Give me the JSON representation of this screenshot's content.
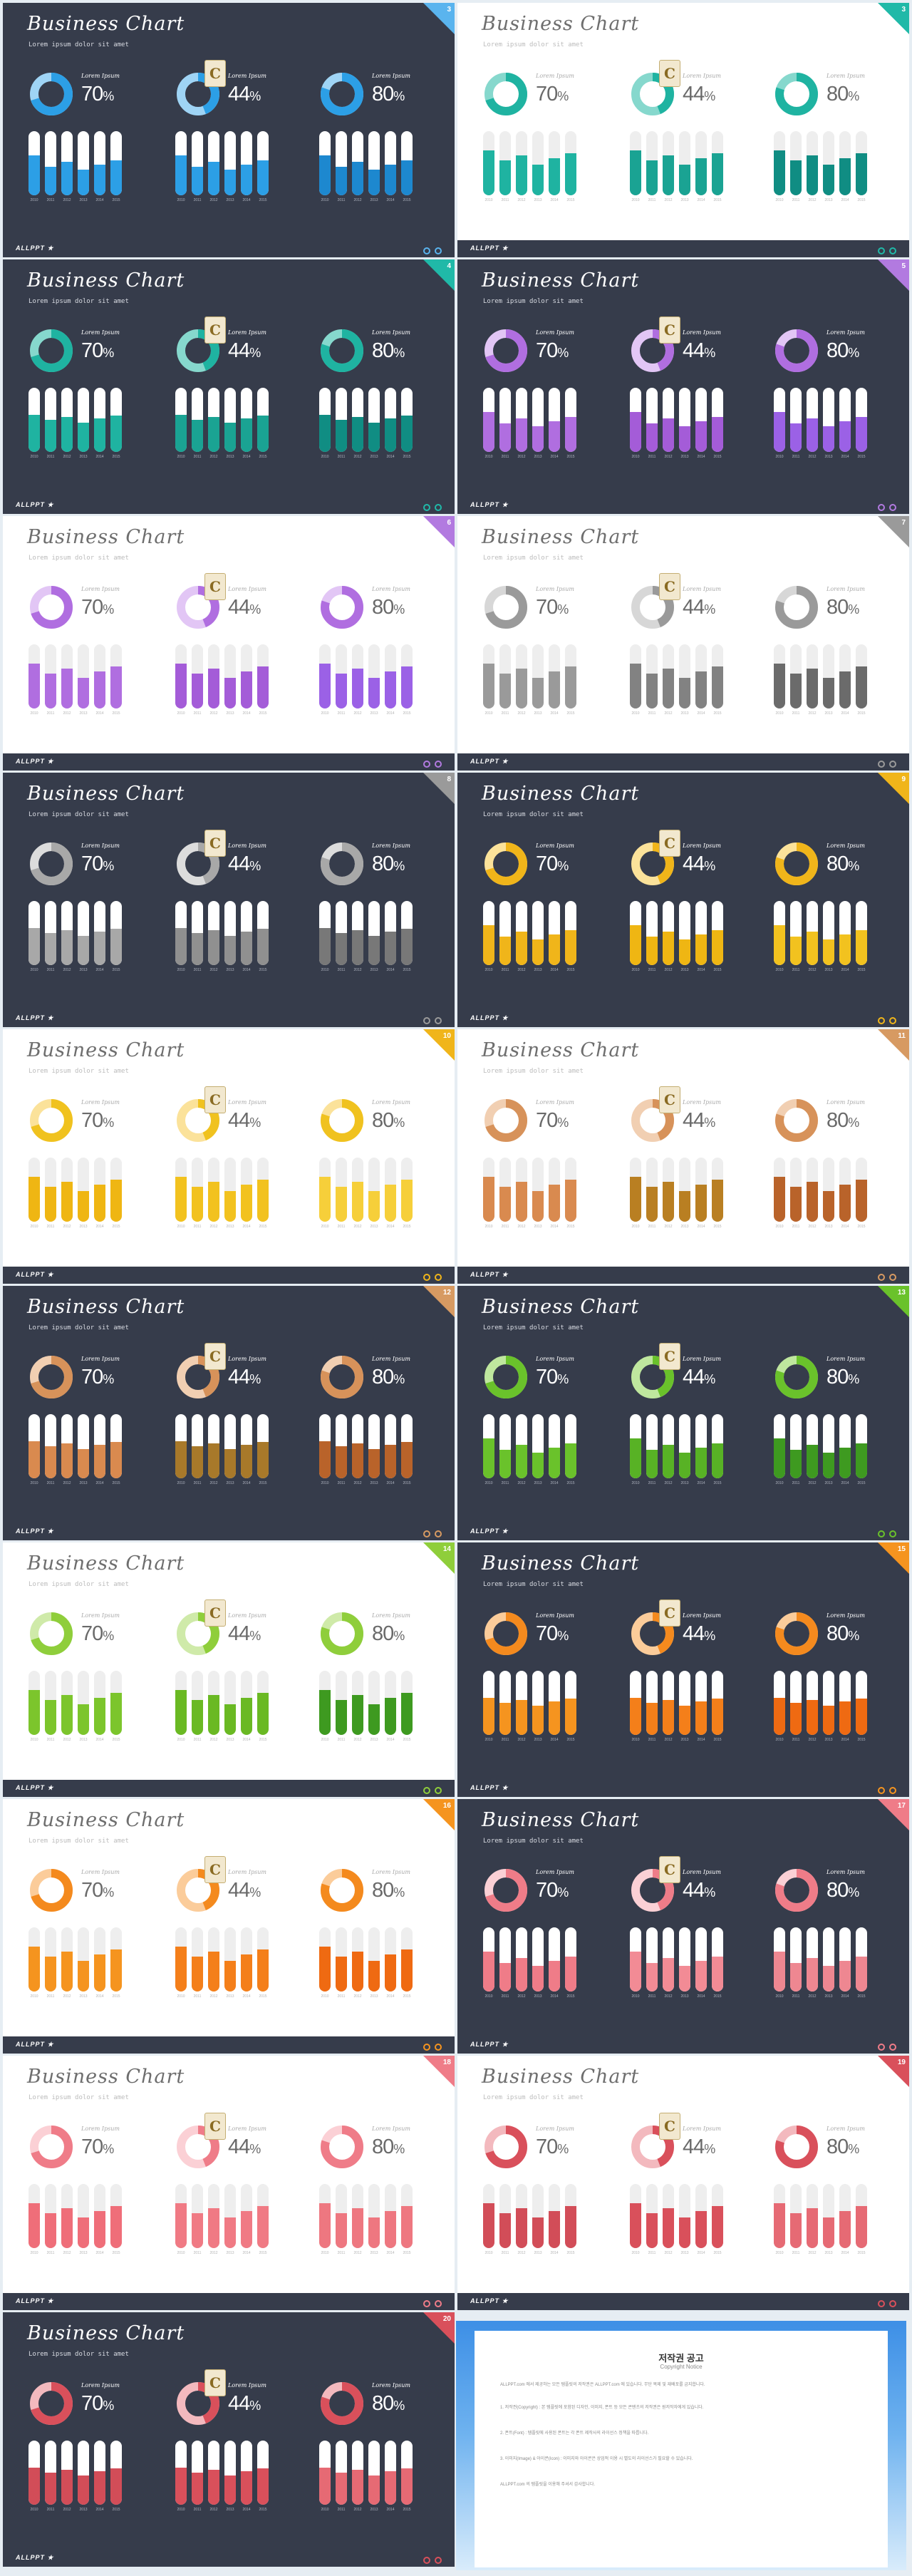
{
  "common": {
    "title": "Business Chart",
    "subtitle": "Lorem ipsum dolor sit amet",
    "panel_label": "Lorem Ipsum",
    "percents": [
      "70",
      "44",
      "80"
    ],
    "percent_symbol": "%",
    "years": [
      "2010",
      "2011",
      "2012",
      "2013",
      "2014",
      "2015"
    ],
    "brand": "ALLPPT ★",
    "watermark_glyph": "C"
  },
  "slides": [
    {
      "number": "3",
      "theme": "dark",
      "accent": "#5ab4ee",
      "donut": [
        "#2c9fe6",
        "#9fd4f5"
      ],
      "bar_palette": [
        "#2c9fe6",
        "#2c9fe6",
        "#1d88cf"
      ],
      "track": "#ffffff",
      "values": [
        0.62,
        0.45,
        0.52,
        0.4,
        0.48,
        0.55,
        0.62,
        0.45,
        0.52,
        0.4,
        0.48,
        0.55,
        0.62,
        0.45,
        0.52,
        0.4,
        0.48,
        0.55
      ]
    },
    {
      "number": "3",
      "theme": "light",
      "accent": "#20b9a8",
      "donut": [
        "#1fb3a1",
        "#86d8cd"
      ],
      "bar_palette": [
        "#1fb3a1",
        "#1aa393",
        "#108d83"
      ],
      "track": "#eeeeee",
      "values": [
        0.7,
        0.55,
        0.62,
        0.48,
        0.58,
        0.66,
        0.7,
        0.55,
        0.62,
        0.48,
        0.58,
        0.66,
        0.7,
        0.55,
        0.62,
        0.48,
        0.58,
        0.66
      ]
    },
    {
      "number": "4",
      "theme": "dark",
      "accent": "#20b9a8",
      "donut": [
        "#1fb3a1",
        "#86d8cd"
      ],
      "bar_palette": [
        "#1fb3a1",
        "#1aa393",
        "#108d83"
      ],
      "track": "#ffffff",
      "values": [
        0.58,
        0.5,
        0.55,
        0.46,
        0.52,
        0.57,
        0.58,
        0.5,
        0.55,
        0.46,
        0.52,
        0.57,
        0.58,
        0.5,
        0.55,
        0.46,
        0.52,
        0.57
      ]
    },
    {
      "number": "5",
      "theme": "dark",
      "accent": "#b27ae0",
      "donut": [
        "#b06ee0",
        "#e2c6f5"
      ],
      "bar_palette": [
        "#b06ee0",
        "#a45cd8",
        "#9b61e6"
      ],
      "track": "#ffffff",
      "values": [
        0.62,
        0.45,
        0.52,
        0.4,
        0.48,
        0.55,
        0.62,
        0.45,
        0.52,
        0.4,
        0.48,
        0.55,
        0.62,
        0.45,
        0.52,
        0.4,
        0.48,
        0.55
      ]
    },
    {
      "number": "6",
      "theme": "light",
      "accent": "#b27ae0",
      "donut": [
        "#b06ee0",
        "#e2c6f5"
      ],
      "bar_palette": [
        "#b06ee0",
        "#a45cd8",
        "#9b61e6"
      ],
      "track": "#eeeeee",
      "values": [
        0.7,
        0.55,
        0.62,
        0.48,
        0.58,
        0.66,
        0.7,
        0.55,
        0.62,
        0.48,
        0.58,
        0.66,
        0.7,
        0.55,
        0.62,
        0.48,
        0.58,
        0.66
      ]
    },
    {
      "number": "7",
      "theme": "light",
      "accent": "#9a9a9a",
      "donut": [
        "#9a9a9a",
        "#d7d7d7"
      ],
      "bar_palette": [
        "#9a9a9a",
        "#828282",
        "#6b6b6b"
      ],
      "track": "#eeeeee",
      "values": [
        0.7,
        0.55,
        0.62,
        0.48,
        0.58,
        0.66,
        0.7,
        0.55,
        0.62,
        0.48,
        0.58,
        0.66,
        0.7,
        0.55,
        0.62,
        0.48,
        0.58,
        0.66
      ]
    },
    {
      "number": "8",
      "theme": "dark",
      "accent": "#9a9a9a",
      "donut": [
        "#a8a8a8",
        "#dcdcdc"
      ],
      "bar_palette": [
        "#a8a8a8",
        "#909090",
        "#787878"
      ],
      "track": "#ffffff",
      "values": [
        0.58,
        0.5,
        0.55,
        0.46,
        0.52,
        0.57,
        0.58,
        0.5,
        0.55,
        0.46,
        0.52,
        0.57,
        0.58,
        0.5,
        0.55,
        0.46,
        0.52,
        0.57
      ]
    },
    {
      "number": "9",
      "theme": "dark",
      "accent": "#f0b51a",
      "donut": [
        "#f0b51a",
        "#fbe29a"
      ],
      "bar_palette": [
        "#f0b51a",
        "#efb613",
        "#f2c21f"
      ],
      "track": "#ffffff",
      "values": [
        0.62,
        0.45,
        0.52,
        0.4,
        0.48,
        0.55,
        0.62,
        0.45,
        0.52,
        0.4,
        0.48,
        0.55,
        0.62,
        0.45,
        0.52,
        0.4,
        0.48,
        0.55
      ]
    },
    {
      "number": "10",
      "theme": "light",
      "accent": "#f0b51a",
      "donut": [
        "#f0c21f",
        "#fbe29a"
      ],
      "bar_palette": [
        "#efb613",
        "#f2c21f",
        "#f6cf3a"
      ],
      "track": "#eeeeee",
      "values": [
        0.7,
        0.55,
        0.62,
        0.48,
        0.58,
        0.66,
        0.7,
        0.55,
        0.62,
        0.48,
        0.58,
        0.66,
        0.7,
        0.55,
        0.62,
        0.48,
        0.58,
        0.66
      ]
    },
    {
      "number": "11",
      "theme": "light",
      "accent": "#d79a62",
      "donut": [
        "#d7925a",
        "#f1cfb2"
      ],
      "bar_palette": [
        "#d98a4f",
        "#b97f22",
        "#b9632a"
      ],
      "track": "#eeeeee",
      "values": [
        0.7,
        0.55,
        0.62,
        0.48,
        0.58,
        0.66,
        0.7,
        0.55,
        0.62,
        0.48,
        0.58,
        0.66,
        0.7,
        0.55,
        0.62,
        0.48,
        0.58,
        0.66
      ]
    },
    {
      "number": "12",
      "theme": "dark",
      "accent": "#d79a62",
      "donut": [
        "#d7925a",
        "#f1cfb2"
      ],
      "bar_palette": [
        "#d98a4f",
        "#a8792a",
        "#b9632a"
      ],
      "track": "#ffffff",
      "values": [
        0.58,
        0.5,
        0.55,
        0.46,
        0.52,
        0.57,
        0.58,
        0.5,
        0.55,
        0.46,
        0.52,
        0.57,
        0.58,
        0.5,
        0.55,
        0.46,
        0.52,
        0.57
      ]
    },
    {
      "number": "13",
      "theme": "dark",
      "accent": "#6ac22b",
      "donut": [
        "#6ac22b",
        "#bfe79e"
      ],
      "bar_palette": [
        "#6ac22b",
        "#58b225",
        "#3e9a20"
      ],
      "track": "#ffffff",
      "values": [
        0.62,
        0.45,
        0.52,
        0.4,
        0.48,
        0.55,
        0.62,
        0.45,
        0.52,
        0.4,
        0.48,
        0.55,
        0.62,
        0.45,
        0.52,
        0.4,
        0.48,
        0.55
      ]
    },
    {
      "number": "14",
      "theme": "light",
      "accent": "#8fce3b",
      "donut": [
        "#8fce3b",
        "#cfeaa9"
      ],
      "bar_palette": [
        "#7cc52c",
        "#6ab923",
        "#3e9a20"
      ],
      "track": "#eeeeee",
      "values": [
        0.7,
        0.55,
        0.62,
        0.48,
        0.58,
        0.66,
        0.7,
        0.55,
        0.62,
        0.48,
        0.58,
        0.66,
        0.7,
        0.55,
        0.62,
        0.48,
        0.58,
        0.66
      ]
    },
    {
      "number": "15",
      "theme": "dark",
      "accent": "#f5941f",
      "donut": [
        "#f48a1e",
        "#fbcc9a"
      ],
      "bar_palette": [
        "#f5941f",
        "#f47f1a",
        "#ef6a12"
      ],
      "track": "#ffffff",
      "values": [
        0.58,
        0.5,
        0.55,
        0.46,
        0.52,
        0.57,
        0.58,
        0.5,
        0.55,
        0.46,
        0.52,
        0.57,
        0.58,
        0.5,
        0.55,
        0.46,
        0.52,
        0.57
      ]
    },
    {
      "number": "16",
      "theme": "light",
      "accent": "#f5941f",
      "donut": [
        "#f48a1e",
        "#fbcc9a"
      ],
      "bar_palette": [
        "#f5941f",
        "#f47f1a",
        "#ef6a12"
      ],
      "track": "#eeeeee",
      "values": [
        0.7,
        0.55,
        0.62,
        0.48,
        0.58,
        0.66,
        0.7,
        0.55,
        0.62,
        0.48,
        0.58,
        0.66,
        0.7,
        0.55,
        0.62,
        0.48,
        0.58,
        0.66
      ]
    },
    {
      "number": "17",
      "theme": "dark",
      "accent": "#ef7c88",
      "donut": [
        "#ef7c88",
        "#fbd0d5"
      ],
      "bar_palette": [
        "#ef7c88",
        "#f28b95",
        "#ee8791"
      ],
      "track": "#ffffff",
      "values": [
        0.62,
        0.45,
        0.52,
        0.4,
        0.48,
        0.55,
        0.62,
        0.45,
        0.52,
        0.4,
        0.48,
        0.55,
        0.62,
        0.45,
        0.52,
        0.4,
        0.48,
        0.55
      ]
    },
    {
      "number": "18",
      "theme": "light",
      "accent": "#ef7c88",
      "donut": [
        "#ef7c88",
        "#fbd0d5"
      ],
      "bar_palette": [
        "#ef6e79",
        "#f07a84",
        "#ee7780"
      ],
      "track": "#eeeeee",
      "values": [
        0.7,
        0.55,
        0.62,
        0.48,
        0.58,
        0.66,
        0.7,
        0.55,
        0.62,
        0.48,
        0.58,
        0.66,
        0.7,
        0.55,
        0.62,
        0.48,
        0.58,
        0.66
      ]
    },
    {
      "number": "19",
      "theme": "light",
      "accent": "#d9505b",
      "donut": [
        "#d9505b",
        "#f3b9be"
      ],
      "bar_palette": [
        "#d24d58",
        "#d9505b",
        "#e66a74"
      ],
      "track": "#eeeeee",
      "values": [
        0.7,
        0.55,
        0.62,
        0.48,
        0.58,
        0.66,
        0.7,
        0.55,
        0.62,
        0.48,
        0.58,
        0.66,
        0.7,
        0.55,
        0.62,
        0.48,
        0.58,
        0.66
      ]
    },
    {
      "number": "20",
      "theme": "dark",
      "accent": "#d9505b",
      "donut": [
        "#d9505b",
        "#f3b9be"
      ],
      "bar_palette": [
        "#d24d58",
        "#d9505b",
        "#e66a74"
      ],
      "track": "#ffffff",
      "values": [
        0.58,
        0.5,
        0.55,
        0.46,
        0.52,
        0.57,
        0.58,
        0.5,
        0.55,
        0.46,
        0.52,
        0.57,
        0.58,
        0.5,
        0.55,
        0.46,
        0.52,
        0.57
      ]
    }
  ],
  "notice": {
    "title": "저작권 공고",
    "subtitle": "Copyright Notice",
    "paragraphs": [
      "ALLPPT.com 에서 제공하는 모든 템플릿의 저작권은 ALLPPT.com 에 있습니다. 무단 복제 및 재배포를 금지합니다.",
      "1. 저작권(Copyright) : 본 템플릿에 포함된 디자인, 이미지, 폰트 등 모든 콘텐츠의 저작권은 원저작자에게 있습니다.",
      "2. 폰트(Font) : 템플릿에 사용된 폰트는 각 폰트 제작사의 라이선스 정책을 따릅니다.",
      "3. 이미지(Image) & 아이콘(Icon) : 이미지와 아이콘은 상업적 이용 시 별도의 라이선스가 필요할 수 있습니다.",
      "ALLPPT.com 의 템플릿을 이용해 주셔서 감사합니다."
    ]
  }
}
